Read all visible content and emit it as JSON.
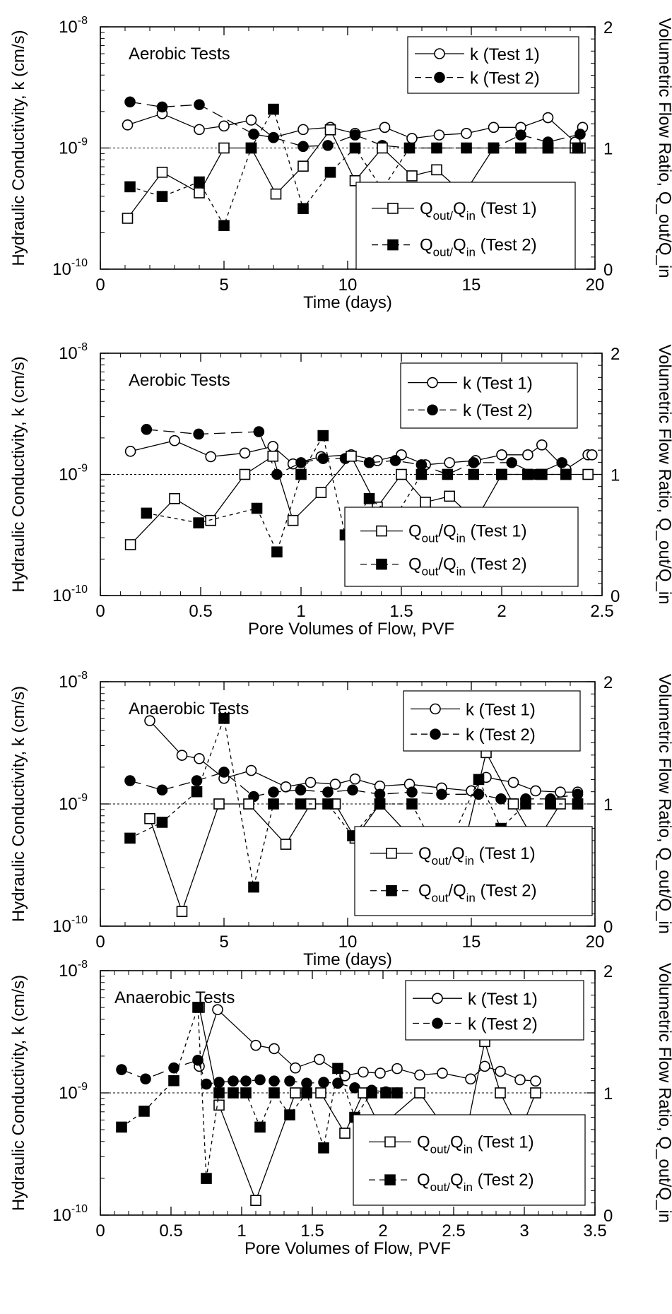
{
  "chart_data": [
    {
      "type": "line",
      "title": "Aerobic Tests",
      "xlabel": "Time (days)",
      "ylabel": "Hydraulic Conductivity, k (cm/s)",
      "y2label": "Volumetric Flow Ratio, Q_out/Q_in",
      "xlim": [
        0,
        20
      ],
      "xticks": [
        "0",
        "5",
        "10",
        "15",
        "20"
      ],
      "yscale": "log",
      "ylim": [
        1e-10,
        1e-08
      ],
      "yticks": [
        {
          "base": "10",
          "exp": "-10"
        },
        {
          "base": "10",
          "exp": "-9"
        },
        {
          "base": "10",
          "exp": "-8"
        }
      ],
      "y2lim": [
        0,
        2
      ],
      "y2ticks": [
        "0",
        "1",
        "2"
      ],
      "reference_line": {
        "axis": "y2",
        "value": 1
      },
      "legend_k": [
        "k (Test 1)",
        "k (Test 2)"
      ],
      "legend_q": [
        {
          "main1": "Q",
          "sub1": "out/",
          "main2": "Q",
          "sub2": "in",
          "tail": " (Test 1)"
        },
        {
          "main1": "Q",
          "sub1": "out/",
          "main2": "Q",
          "sub2": "in",
          "tail": " (Test 2)"
        }
      ],
      "series": [
        {
          "name": "k (Test 1)",
          "axis": "y",
          "marker": "circle-open",
          "line": "solid",
          "x": [
            1.1,
            2.5,
            4.0,
            5.0,
            6.1,
            7.0,
            8.2,
            9.3,
            10.3,
            11.5,
            12.6,
            13.7,
            14.8,
            15.9,
            17.0,
            18.1,
            19.2,
            19.5
          ],
          "y": [
            1.55e-09,
            1.92e-09,
            1.42e-09,
            1.52e-09,
            1.7e-09,
            1.22e-09,
            1.42e-09,
            1.48e-09,
            1.32e-09,
            1.48e-09,
            1.2e-09,
            1.28e-09,
            1.32e-09,
            1.48e-09,
            1.48e-09,
            1.78e-09,
            1.12e-09,
            1.48e-09
          ]
        },
        {
          "name": "k (Test 2)",
          "axis": "y",
          "marker": "circle-filled",
          "line": "dashed",
          "x": [
            1.2,
            2.5,
            4.0,
            6.2,
            7.0,
            8.2,
            9.2,
            10.3,
            11.4,
            12.5,
            13.6,
            14.8,
            15.9,
            17.0,
            18.1,
            19.4
          ],
          "y": [
            2.4e-09,
            2.18e-09,
            2.28e-09,
            1.3e-09,
            1.22e-09,
            1.03e-09,
            1.05e-09,
            1.28e-09,
            1.05e-09,
            1e-09,
            1e-09,
            1e-09,
            1e-09,
            1.28e-09,
            1.12e-09,
            1.3e-09
          ]
        },
        {
          "name": "Qout/Qin (Test 1)",
          "axis": "y2",
          "marker": "square-open",
          "line": "solid",
          "x": [
            1.1,
            2.5,
            4.0,
            5.0,
            6.1,
            7.1,
            8.2,
            9.3,
            10.3,
            11.4,
            12.6,
            13.6,
            14.7,
            15.9,
            17.0,
            18.1,
            19.2,
            19.4
          ],
          "y": [
            0.42,
            0.8,
            0.63,
            1.0,
            1.0,
            0.62,
            0.85,
            1.15,
            0.73,
            1.0,
            0.77,
            0.82,
            0.62,
            1.0,
            1.0,
            1.0,
            1.0,
            1.0
          ]
        },
        {
          "name": "Qout/Qin (Test 2)",
          "axis": "y2",
          "marker": "square-filled",
          "line": "dashed",
          "x": [
            1.2,
            2.5,
            4.0,
            5.0,
            6.1,
            7.0,
            8.2,
            9.3,
            10.3,
            11.4,
            12.5,
            13.6,
            14.8,
            15.9,
            17.0,
            18.1,
            19.3
          ],
          "y": [
            0.68,
            0.6,
            0.72,
            0.36,
            1.0,
            1.32,
            0.5,
            0.8,
            1.0,
            0.66,
            1.0,
            1.0,
            1.0,
            1.0,
            1.0,
            1.0,
            1.0
          ]
        }
      ]
    },
    {
      "type": "line",
      "title": "Aerobic Tests",
      "xlabel": "Pore Volumes of Flow, PVF",
      "ylabel": "Hydraulic Conductivity, k (cm/s)",
      "y2label": "Volumetric Flow Ratio, Q_out/Q_in",
      "xlim": [
        0,
        2.5
      ],
      "xticks": [
        "0",
        "0.5",
        "1",
        "1.5",
        "2",
        "2.5"
      ],
      "yscale": "log",
      "ylim": [
        1e-10,
        1e-08
      ],
      "yticks": [
        {
          "base": "10",
          "exp": "-10"
        },
        {
          "base": "10",
          "exp": "-9"
        },
        {
          "base": "10",
          "exp": "-8"
        }
      ],
      "y2lim": [
        0,
        2
      ],
      "y2ticks": [
        "0",
        "1",
        "2"
      ],
      "reference_line": {
        "axis": "y2",
        "value": 1
      },
      "legend_k": [
        "k (Test 1)",
        "k (Test 2)"
      ],
      "legend_q": [
        {
          "main1": "Q",
          "sub1": "out",
          "main2": "/Q",
          "sub2": "in",
          "tail": " (Test 1)"
        },
        {
          "main1": "Q",
          "sub1": "out",
          "main2": "/Q",
          "sub2": "in",
          "tail": " (Test 2)"
        }
      ],
      "series": [
        {
          "name": "k (Test 1)",
          "axis": "y",
          "marker": "circle-open",
          "line": "solid",
          "x": [
            0.15,
            0.37,
            0.55,
            0.72,
            0.86,
            0.96,
            1.1,
            1.25,
            1.38,
            1.5,
            1.62,
            1.74,
            1.87,
            2.0,
            2.13,
            2.2,
            2.32,
            2.43,
            2.45
          ],
          "y": [
            1.55e-09,
            1.9e-09,
            1.4e-09,
            1.5e-09,
            1.7e-09,
            1.22e-09,
            1.4e-09,
            1.45e-09,
            1.3e-09,
            1.45e-09,
            1.2e-09,
            1.25e-09,
            1.3e-09,
            1.45e-09,
            1.45e-09,
            1.75e-09,
            1.1e-09,
            1.45e-09,
            1.45e-09
          ]
        },
        {
          "name": "k (Test 2)",
          "axis": "y",
          "marker": "circle-filled",
          "line": "dashed",
          "x": [
            0.23,
            0.49,
            0.79,
            0.88,
            1.0,
            1.11,
            1.22,
            1.34,
            1.47,
            1.6,
            1.73,
            1.86,
            2.05,
            2.17,
            2.3
          ],
          "y": [
            2.35e-09,
            2.15e-09,
            2.25e-09,
            1e-09,
            1.25e-09,
            1.35e-09,
            1.35e-09,
            1.25e-09,
            1.3e-09,
            1.2e-09,
            1e-09,
            1.25e-09,
            1.25e-09,
            1e-09,
            1.25e-09
          ]
        },
        {
          "name": "Qout/Qin (Test 1)",
          "axis": "y2",
          "marker": "square-open",
          "line": "solid",
          "x": [
            0.15,
            0.37,
            0.55,
            0.72,
            0.86,
            0.96,
            1.1,
            1.25,
            1.38,
            1.5,
            1.62,
            1.74,
            1.87,
            2.0,
            2.13,
            2.2,
            2.32,
            2.43
          ],
          "y": [
            0.42,
            0.8,
            0.62,
            1.0,
            1.15,
            0.62,
            0.85,
            1.15,
            0.73,
            1.0,
            0.77,
            0.82,
            0.62,
            1.0,
            1.0,
            1.0,
            1.0,
            1.0
          ]
        },
        {
          "name": "Qout/Qin (Test 2)",
          "axis": "y2",
          "marker": "square-filled",
          "line": "dashed",
          "x": [
            0.23,
            0.49,
            0.78,
            0.88,
            1.0,
            1.11,
            1.22,
            1.34,
            1.47,
            1.6,
            1.73,
            1.86,
            2.0,
            2.13,
            2.2,
            2.32
          ],
          "y": [
            0.68,
            0.6,
            0.72,
            0.36,
            1.0,
            1.32,
            0.5,
            0.8,
            0.65,
            1.0,
            1.0,
            1.0,
            1.0,
            1.0,
            1.0,
            1.0
          ]
        }
      ]
    },
    {
      "type": "line",
      "title": "Anaerobic Tests",
      "xlabel": "Time (days)",
      "ylabel": "Hydraulic Conductivity, k (cm/s)",
      "y2label": "Volumetric Flow Ratio, Q_out/Q_in",
      "xlim": [
        0,
        20
      ],
      "xticks": [
        "0",
        "5",
        "10",
        "15",
        "20"
      ],
      "yscale": "log",
      "ylim": [
        1e-10,
        1e-08
      ],
      "yticks": [
        {
          "base": "10",
          "exp": "-10"
        },
        {
          "base": "10",
          "exp": "-9"
        },
        {
          "base": "10",
          "exp": "-8"
        }
      ],
      "y2lim": [
        0,
        2
      ],
      "y2ticks": [
        "0",
        "1",
        "2"
      ],
      "reference_line": {
        "axis": "y2",
        "value": 1
      },
      "legend_k": [
        "k (Test 1)",
        "k (Test 2)"
      ],
      "legend_q": [
        {
          "main1": "Q",
          "sub1": "out/",
          "main2": "Q",
          "sub2": "in",
          "tail": " (Test 1)"
        },
        {
          "main1": "Q",
          "sub1": "out",
          "main2": "/Q",
          "sub2": "in",
          "tail": " (Test 2)"
        }
      ],
      "series": [
        {
          "name": "k (Test 1)",
          "axis": "y",
          "marker": "circle-open",
          "line": "solid",
          "x": [
            2.0,
            3.3,
            4.0,
            5.0,
            6.1,
            7.5,
            8.5,
            9.5,
            10.3,
            11.3,
            12.5,
            13.8,
            15.0,
            15.6,
            16.7,
            17.6,
            18.6,
            19.3
          ],
          "y": [
            4.8e-09,
            2.5e-09,
            2.35e-09,
            1.62e-09,
            1.88e-09,
            1.38e-09,
            1.5e-09,
            1.45e-09,
            1.6e-09,
            1.4e-09,
            1.45e-09,
            1.35e-09,
            1.28e-09,
            1.65e-09,
            1.5e-09,
            1.28e-09,
            1.25e-09,
            1.25e-09
          ]
        },
        {
          "name": "k (Test 2)",
          "axis": "y",
          "marker": "circle-filled",
          "line": "dashed",
          "x": [
            1.2,
            2.5,
            3.9,
            5.0,
            6.2,
            7.0,
            8.1,
            9.2,
            10.2,
            11.3,
            12.6,
            13.8,
            15.3,
            16.2,
            17.2,
            18.2,
            19.3
          ],
          "y": [
            1.55e-09,
            1.3e-09,
            1.55e-09,
            1.82e-09,
            1.15e-09,
            1.25e-09,
            1.3e-09,
            1.25e-09,
            1.3e-09,
            1.2e-09,
            1.25e-09,
            1.2e-09,
            1.2e-09,
            1.1e-09,
            1.1e-09,
            1.1e-09,
            1.2e-09
          ]
        },
        {
          "name": "Qout/Qin (Test 1)",
          "axis": "y2",
          "marker": "square-open",
          "line": "solid",
          "x": [
            2.0,
            3.3,
            4.8,
            6.0,
            7.5,
            8.5,
            9.5,
            10.3,
            11.3,
            12.5,
            13.8,
            14.7,
            15.6,
            16.7,
            17.6,
            18.6,
            19.3
          ],
          "y": [
            0.88,
            0.12,
            1.0,
            1.0,
            0.67,
            1.0,
            1.0,
            0.72,
            1.0,
            0.74,
            0.6,
            0.65,
            1.42,
            1.0,
            0.68,
            1.0,
            1.0
          ]
        },
        {
          "name": "Qout/Qin (Test 2)",
          "axis": "y2",
          "marker": "square-filled",
          "line": "dashed",
          "x": [
            1.2,
            2.5,
            3.9,
            5.0,
            6.2,
            7.0,
            8.1,
            9.2,
            10.2,
            11.3,
            12.6,
            13.8,
            15.3,
            16.2,
            17.2,
            18.2,
            19.3
          ],
          "y": [
            0.72,
            0.85,
            1.1,
            1.7,
            0.32,
            1.0,
            1.0,
            1.0,
            0.74,
            1.0,
            1.0,
            0.53,
            1.2,
            0.8,
            1.0,
            1.0,
            1.0
          ]
        }
      ]
    },
    {
      "type": "line",
      "title": "Anaerobic Tests",
      "xlabel": "Pore Volumes of Flow, PVF",
      "ylabel": "Hydraulic Conductivity, k (cm/s)",
      "y2label": "Volumetric Flow Ratio, Q_out/Q_in",
      "xlim": [
        0,
        3.5
      ],
      "xticks": [
        "0",
        "0.5",
        "1",
        "1.5",
        "2",
        "2.5",
        "3",
        "3.5"
      ],
      "yscale": "log",
      "ylim": [
        1e-10,
        1e-08
      ],
      "yticks": [
        {
          "base": "10",
          "exp": "-10"
        },
        {
          "base": "10",
          "exp": "-9"
        },
        {
          "base": "10",
          "exp": "-8"
        }
      ],
      "y2lim": [
        0,
        2
      ],
      "y2ticks": [
        "0",
        "1",
        "2"
      ],
      "reference_line": {
        "axis": "y2",
        "value": 1
      },
      "legend_k": [
        "k (Test 1)",
        "k (Test 2)"
      ],
      "legend_q": [
        {
          "main1": "Q",
          "sub1": "out/",
          "main2": "Q",
          "sub2": "in",
          "tail": " (Test 1)"
        },
        {
          "main1": "Q",
          "sub1": "out/",
          "main2": "Q",
          "sub2": "in",
          "tail": " (Test 2)"
        }
      ],
      "series": [
        {
          "name": "k (Test 1)",
          "axis": "y",
          "marker": "circle-open",
          "line": "solid",
          "x": [
            0.7,
            0.83,
            1.1,
            1.23,
            1.38,
            1.55,
            1.73,
            1.86,
            1.98,
            2.1,
            2.26,
            2.42,
            2.62,
            2.72,
            2.83,
            2.97,
            3.08
          ],
          "y": [
            1.65e-09,
            4.8e-09,
            2.45e-09,
            2.3e-09,
            1.6e-09,
            1.88e-09,
            1.38e-09,
            1.48e-09,
            1.45e-09,
            1.58e-09,
            1.4e-09,
            1.45e-09,
            1.3e-09,
            1.65e-09,
            1.5e-09,
            1.28e-09,
            1.25e-09
          ]
        },
        {
          "name": "k (Test 2)",
          "axis": "y",
          "marker": "circle-filled",
          "line": "dashed",
          "x": [
            0.15,
            0.32,
            0.52,
            0.69,
            0.75,
            0.84,
            0.94,
            1.03,
            1.13,
            1.23,
            1.34,
            1.46,
            1.58,
            1.68,
            1.8,
            1.92,
            2.02,
            2.1
          ],
          "y": [
            1.55e-09,
            1.3e-09,
            1.6e-09,
            1.85e-09,
            1.18e-09,
            1.22e-09,
            1.25e-09,
            1.25e-09,
            1.28e-09,
            1.25e-09,
            1.25e-09,
            1.2e-09,
            1.22e-09,
            1.2e-09,
            1.1e-09,
            1.05e-09,
            1.02e-09,
            1e-09
          ]
        },
        {
          "name": "Qout/Qin (Test 1)",
          "axis": "y2",
          "marker": "square-open",
          "line": "solid",
          "x": [
            0.7,
            0.84,
            1.1,
            1.38,
            1.56,
            1.73,
            1.86,
            1.98,
            2.26,
            2.42,
            2.58,
            2.72,
            2.83,
            2.97,
            3.08
          ],
          "y": [
            1.7,
            0.9,
            0.12,
            1.0,
            1.0,
            0.67,
            1.0,
            0.72,
            1.0,
            0.74,
            0.62,
            1.42,
            1.0,
            0.68,
            1.0
          ]
        },
        {
          "name": "Qout/Qin (Test 2)",
          "axis": "y2",
          "marker": "square-filled",
          "line": "dashed",
          "x": [
            0.15,
            0.31,
            0.52,
            0.69,
            0.75,
            0.84,
            0.94,
            1.03,
            1.13,
            1.23,
            1.34,
            1.46,
            1.58,
            1.68,
            1.8,
            1.92,
            2.02,
            2.1
          ],
          "y": [
            0.72,
            0.85,
            1.1,
            1.7,
            0.3,
            1.0,
            1.0,
            1.0,
            0.72,
            1.0,
            0.82,
            1.0,
            0.55,
            1.2,
            0.8,
            1.0,
            1.0,
            1.0
          ]
        }
      ]
    }
  ]
}
